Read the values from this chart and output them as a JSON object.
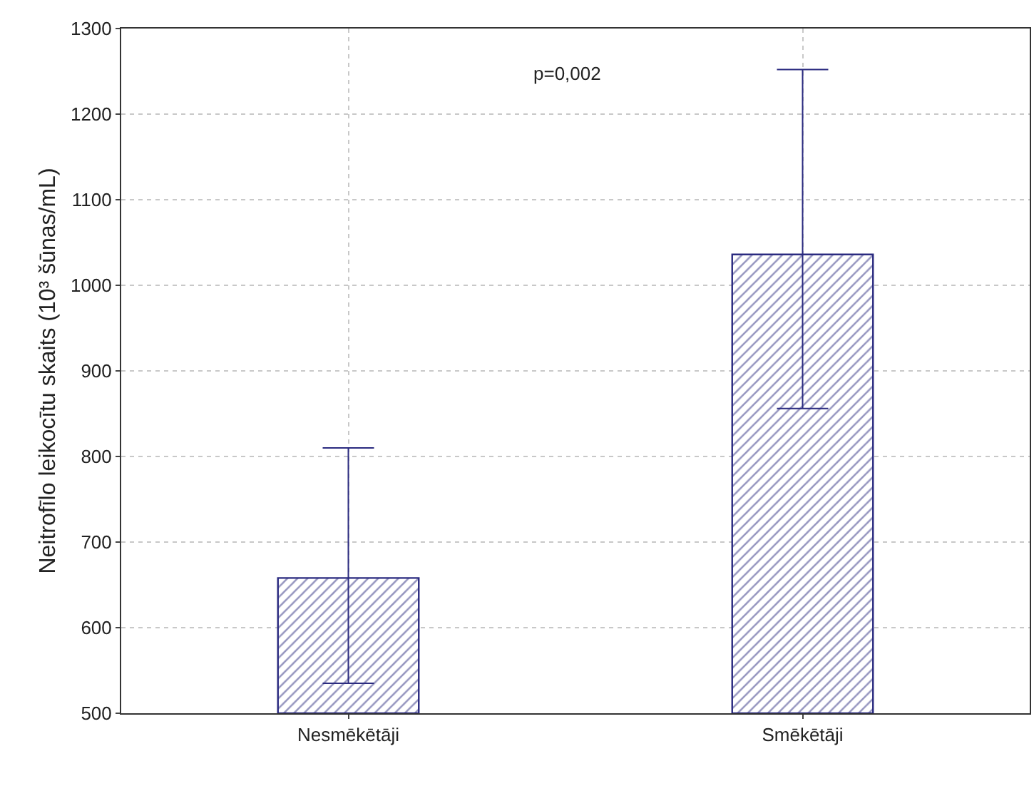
{
  "chart_data": {
    "type": "bar",
    "ylabel": "Neitrofīlo leikocītu skaits (10³ šūnas/mL)",
    "categories": [
      "Nesmēkētāji",
      "Smēkētāji"
    ],
    "values": [
      658,
      1036
    ],
    "errors": [
      [
        535,
        810
      ],
      [
        856,
        1252
      ]
    ],
    "color": "#2b2b80",
    "ylim": [
      500,
      1300
    ],
    "yticks": [
      500,
      600,
      700,
      800,
      900,
      1000,
      1100,
      1200,
      1300
    ],
    "grid": true,
    "annotations": [
      "p=0,002"
    ]
  }
}
